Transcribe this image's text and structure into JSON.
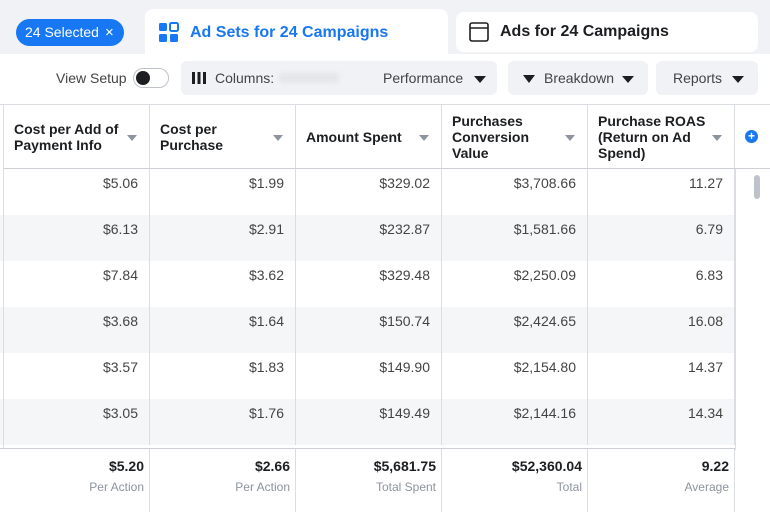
{
  "selection": {
    "label": "24 Selected",
    "clear_glyph": "×"
  },
  "tabs": [
    {
      "label": "Ad Sets for 24 Campaigns",
      "icon": "grid-icon",
      "active": true
    },
    {
      "label": "Ads for 24 Campaigns",
      "icon": "window-icon",
      "active": false
    }
  ],
  "toolbar": {
    "view_setup": "View Setup",
    "columns_label": "Columns:",
    "columns_value": "Performance",
    "breakdown": "Breakdown",
    "reports": "Reports"
  },
  "table": {
    "columns": [
      "Cost per Add of Payment Info",
      "Cost per Purchase",
      "Amount Spent",
      "Purchases Conversion Value",
      "Purchase ROAS (Return on Ad Spend)"
    ],
    "rows": [
      [
        "$5.06",
        "$1.99",
        "$329.02",
        "$3,708.66",
        "11.27"
      ],
      [
        "$6.13",
        "$2.91",
        "$232.87",
        "$1,581.66",
        "6.79"
      ],
      [
        "$7.84",
        "$3.62",
        "$329.48",
        "$2,250.09",
        "6.83"
      ],
      [
        "$3.68",
        "$1.64",
        "$150.74",
        "$2,424.65",
        "16.08"
      ],
      [
        "$3.57",
        "$1.83",
        "$149.90",
        "$2,154.80",
        "14.37"
      ],
      [
        "$3.05",
        "$1.76",
        "$149.49",
        "$2,144.16",
        "14.34"
      ]
    ],
    "totals": [
      {
        "value": "$5.20",
        "sub": "Per Action"
      },
      {
        "value": "$2.66",
        "sub": "Per Action"
      },
      {
        "value": "$5,681.75",
        "sub": "Total Spent"
      },
      {
        "value": "$52,360.04",
        "sub": "Total"
      },
      {
        "value": "9.22",
        "sub": "Average"
      }
    ],
    "add_column_glyph": "+"
  }
}
